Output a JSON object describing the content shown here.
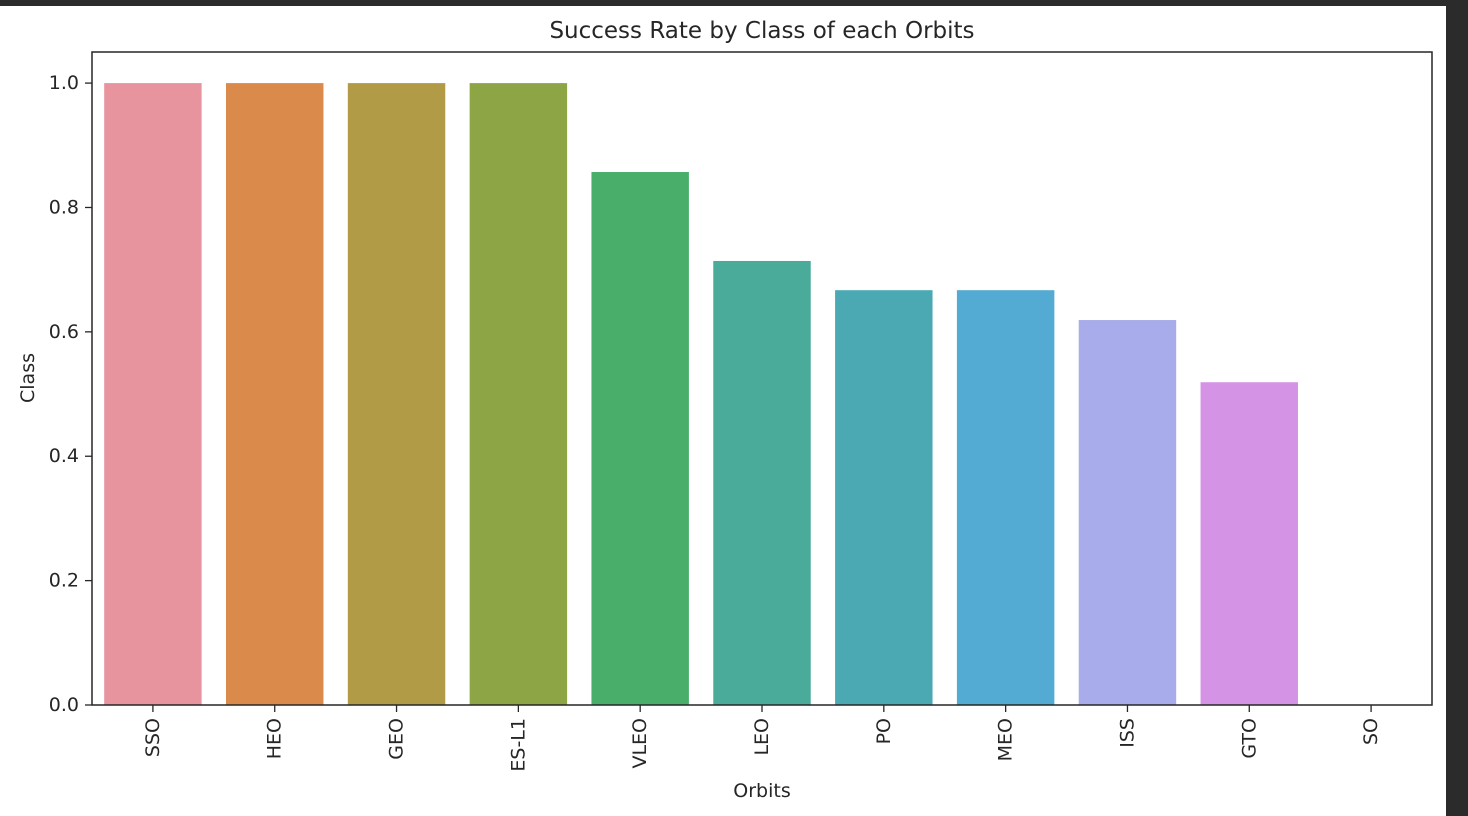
{
  "chart_data": {
    "type": "bar",
    "title": "Success Rate by Class of each Orbits",
    "xlabel": "Orbits",
    "ylabel": "Class",
    "ylim": [
      0,
      1.05
    ],
    "yticks": [
      0.0,
      0.2,
      0.4,
      0.6,
      0.8,
      1.0
    ],
    "ytick_labels": [
      "0.0",
      "0.2",
      "0.4",
      "0.6",
      "0.8",
      "1.0"
    ],
    "categories": [
      "SSO",
      "HEO",
      "GEO",
      "ES-L1",
      "VLEO",
      "LEO",
      "PO",
      "MEO",
      "ISS",
      "GTO",
      "SO"
    ],
    "values": [
      1.0,
      1.0,
      1.0,
      1.0,
      0.857,
      0.714,
      0.667,
      0.667,
      0.619,
      0.519,
      0.0
    ],
    "colors": [
      "#e8949f",
      "#da8b4b",
      "#b29b46",
      "#8ea546",
      "#4aae6b",
      "#4aab9b",
      "#4ba9b3",
      "#53aad3",
      "#a8acea",
      "#d593e6",
      "#e993c4"
    ],
    "grid": false,
    "legend": "none",
    "tick_rotation": -90
  }
}
